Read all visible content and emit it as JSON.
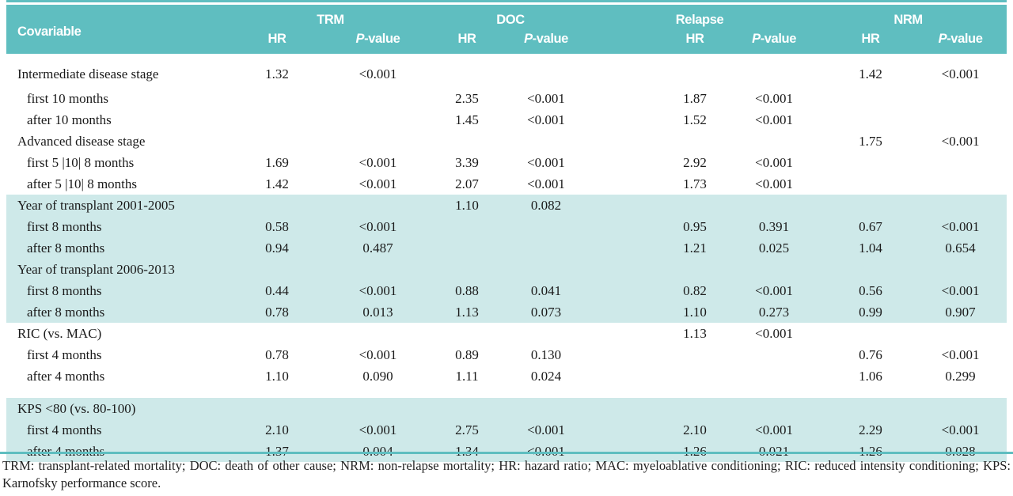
{
  "header": {
    "covariable": "Covariable",
    "groups": [
      {
        "name": "TRM",
        "hr": "HR",
        "p": "P-value"
      },
      {
        "name": "DOC",
        "hr": "HR",
        "p": "P-value"
      },
      {
        "name": "Relapse",
        "hr": "HR",
        "p": "P-value"
      },
      {
        "name": "NRM",
        "hr": "HR",
        "p": "P-value"
      }
    ]
  },
  "sections": [
    {
      "shaded": false,
      "rows": [
        {
          "label": "Intermediate disease stage",
          "indent": false,
          "trm_hr": "1.32",
          "trm_p": "<0.001",
          "nrm_hr": "1.42",
          "nrm_p": "<0.001"
        },
        {
          "label": "first 10 months",
          "indent": true,
          "doc_hr": "2.35",
          "doc_p": "<0.001",
          "rel_hr": "1.87",
          "rel_p": "<0.001"
        },
        {
          "label": "after 10 months",
          "indent": true,
          "doc_hr": "1.45",
          "doc_p": "<0.001",
          "rel_hr": "1.52",
          "rel_p": "<0.001"
        },
        {
          "label": "Advanced disease stage",
          "indent": false,
          "nrm_hr": "1.75",
          "nrm_p": "<0.001"
        },
        {
          "label": "first 5 |10| 8 months",
          "indent": true,
          "trm_hr": "1.69",
          "trm_p": "<0.001",
          "doc_hr": "3.39",
          "doc_p": "<0.001",
          "rel_hr": "2.92",
          "rel_p": "<0.001"
        },
        {
          "label": "after 5 |10| 8 months",
          "indent": true,
          "trm_hr": "1.42",
          "trm_p": "<0.001",
          "doc_hr": "2.07",
          "doc_p": "<0.001",
          "rel_hr": "1.73",
          "rel_p": "<0.001"
        }
      ]
    },
    {
      "shaded": true,
      "rows": [
        {
          "label": "Year of transplant 2001-2005",
          "indent": false,
          "doc_hr": "1.10",
          "doc_p": "0.082"
        },
        {
          "label": "first 8 months",
          "indent": true,
          "trm_hr": "0.58",
          "trm_p": "<0.001",
          "rel_hr": "0.95",
          "rel_p": "0.391",
          "nrm_hr": "0.67",
          "nrm_p": "<0.001"
        },
        {
          "label": "after 8 months",
          "indent": true,
          "trm_hr": "0.94",
          "trm_p": "0.487",
          "rel_hr": "1.21",
          "rel_p": "0.025",
          "nrm_hr": "1.04",
          "nrm_p": "0.654"
        },
        {
          "label": "Year of transplant 2006-2013",
          "indent": false
        },
        {
          "label": "first 8 months",
          "indent": true,
          "trm_hr": "0.44",
          "trm_p": "<0.001",
          "doc_hr": "0.88",
          "doc_p": "0.041",
          "rel_hr": "0.82",
          "rel_p": "<0.001",
          "nrm_hr": "0.56",
          "nrm_p": "<0.001"
        },
        {
          "label": "after 8 months",
          "indent": true,
          "trm_hr": "0.78",
          "trm_p": "0.013",
          "doc_hr": "1.13",
          "doc_p": "0.073",
          "rel_hr": "1.10",
          "rel_p": "0.273",
          "nrm_hr": "0.99",
          "nrm_p": "0.907"
        }
      ]
    },
    {
      "shaded": false,
      "rows": [
        {
          "label": "RIC  (vs. MAC)",
          "indent": false,
          "rel_hr": "1.13",
          "rel_p": "<0.001"
        },
        {
          "label": "first 4 months",
          "indent": true,
          "trm_hr": "0.78",
          "trm_p": "<0.001",
          "doc_hr": "0.89",
          "doc_p": "0.130",
          "nrm_hr": "0.76",
          "nrm_p": "<0.001"
        },
        {
          "label": "after 4 months",
          "indent": true,
          "trm_hr": "1.10",
          "trm_p": "0.090",
          "doc_hr": "1.11",
          "doc_p": "0.024",
          "nrm_hr": "1.06",
          "nrm_p": "0.299"
        }
      ]
    },
    {
      "shaded": true,
      "gap_before": true,
      "rows": [
        {
          "label": "KPS <80 (vs. 80-100)",
          "indent": false
        },
        {
          "label": "first 4 months",
          "indent": true,
          "trm_hr": "2.10",
          "trm_p": "<0.001",
          "doc_hr": "2.75",
          "doc_p": "<0.001",
          "rel_hr": "2.10",
          "rel_p": "<0.001",
          "nrm_hr": "2.29",
          "nrm_p": "<0.001"
        },
        {
          "label": "after 4 months",
          "indent": true,
          "trm_hr": "1.37",
          "trm_p": "0.004",
          "doc_hr": "1.34",
          "doc_p": "<0.001",
          "rel_hr": "1.26",
          "rel_p": "0.021",
          "nrm_hr": "1.26",
          "nrm_p": "0.028"
        }
      ]
    }
  ],
  "footnote": "TRM: transplant-related mortality; DOC: death of other cause; NRM: non-relapse mortality; HR: hazard ratio; MAC: myeloablative conditioning; RIC: reduced intensity conditioning; KPS: Karnofsky performance score.",
  "colors": {
    "header_teal": "#5fbec0",
    "row_shade": "#cee9e9",
    "text": "#1a1a1a"
  }
}
